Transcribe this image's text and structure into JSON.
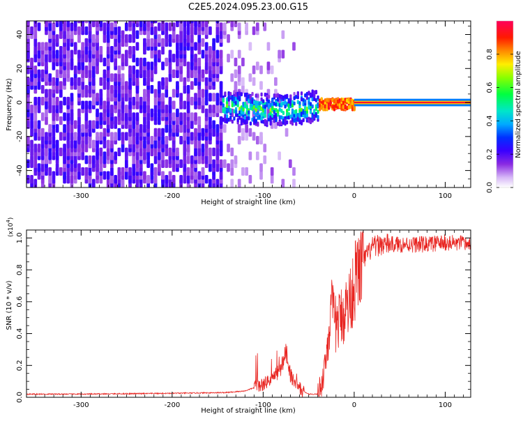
{
  "title": "C2E5.2024.095.23.00.G15",
  "colors": {
    "axis": "#000000",
    "snr_line": "#e8231f",
    "background": "#ffffff"
  },
  "chart_data": [
    {
      "type": "heatmap",
      "name": "spectrogram",
      "xlabel": "Height of straight line (km)",
      "ylabel": "Frequency (Hz)",
      "xlim": [
        -360,
        128
      ],
      "ylim": [
        -50,
        48
      ],
      "xticks": [
        -300,
        -200,
        -100,
        0,
        100
      ],
      "yticks": [
        -40,
        -20,
        0,
        20,
        40
      ],
      "xtick_labels": [
        "-300",
        "-200",
        "-100",
        "0",
        "100"
      ],
      "ytick_labels": [
        "-40",
        "-20",
        "0",
        "20",
        "40"
      ],
      "colorbar": {
        "label": "Normalized spectral amplitude",
        "range": [
          0.0,
          1.0
        ],
        "ticks": [
          0.0,
          0.2,
          0.4,
          0.6,
          0.8
        ],
        "tick_labels": [
          "0.0",
          "0.2",
          "0.4",
          "0.6",
          "0.8"
        ]
      },
      "regions": [
        {
          "name": "broadband noise",
          "x_range": [
            -360,
            -145
          ],
          "freq_range": [
            -50,
            48
          ],
          "amplitude": 0.18
        },
        {
          "name": "fading noise",
          "x_range": [
            -145,
            -60
          ],
          "freq_range": [
            -50,
            48
          ],
          "amplitude": 0.1
        },
        {
          "name": "carrier band",
          "x_range": [
            -145,
            0
          ],
          "freq_range": [
            -12,
            8
          ],
          "amplitude": 0.55
        },
        {
          "name": "carrier line",
          "x_range": [
            0,
            128
          ],
          "center_freq": 0,
          "amplitude": 0.95
        }
      ]
    },
    {
      "type": "line",
      "name": "snr",
      "xlabel": "Height of straight line (km)",
      "ylabel": "SNR (10 * v/v)",
      "scale_note": "(x10",
      "scale_exp": "4",
      "scale_close": ")",
      "xlim": [
        -360,
        128
      ],
      "ylim": [
        0,
        1.05
      ],
      "xticks": [
        -300,
        -200,
        -100,
        0,
        100
      ],
      "yticks": [
        0.0,
        0.2,
        0.4,
        0.6,
        0.8,
        1.0
      ],
      "xtick_labels": [
        "-300",
        "-200",
        "-100",
        "0",
        "100"
      ],
      "ytick_labels": [
        "0.0",
        "0.2",
        "0.4",
        "0.6",
        "0.8",
        "1.0"
      ],
      "series": [
        {
          "name": "SNR",
          "x": [
            -360,
            -300,
            -200,
            -140,
            -120,
            -110,
            -100,
            -90,
            -80,
            -75,
            -70,
            -60,
            -50,
            -40,
            -35,
            -30,
            -25,
            -20,
            -15,
            -10,
            -5,
            0,
            10,
            20,
            30,
            40,
            60,
            80,
            100,
            128
          ],
          "y": [
            0.02,
            0.02,
            0.025,
            0.03,
            0.04,
            0.06,
            0.08,
            0.12,
            0.18,
            0.3,
            0.14,
            0.05,
            0.02,
            0.02,
            0.1,
            0.3,
            0.55,
            0.45,
            0.5,
            0.55,
            0.6,
            0.72,
            0.86,
            0.94,
            0.96,
            0.96,
            0.96,
            0.96,
            0.97,
            0.96
          ]
        }
      ]
    }
  ]
}
